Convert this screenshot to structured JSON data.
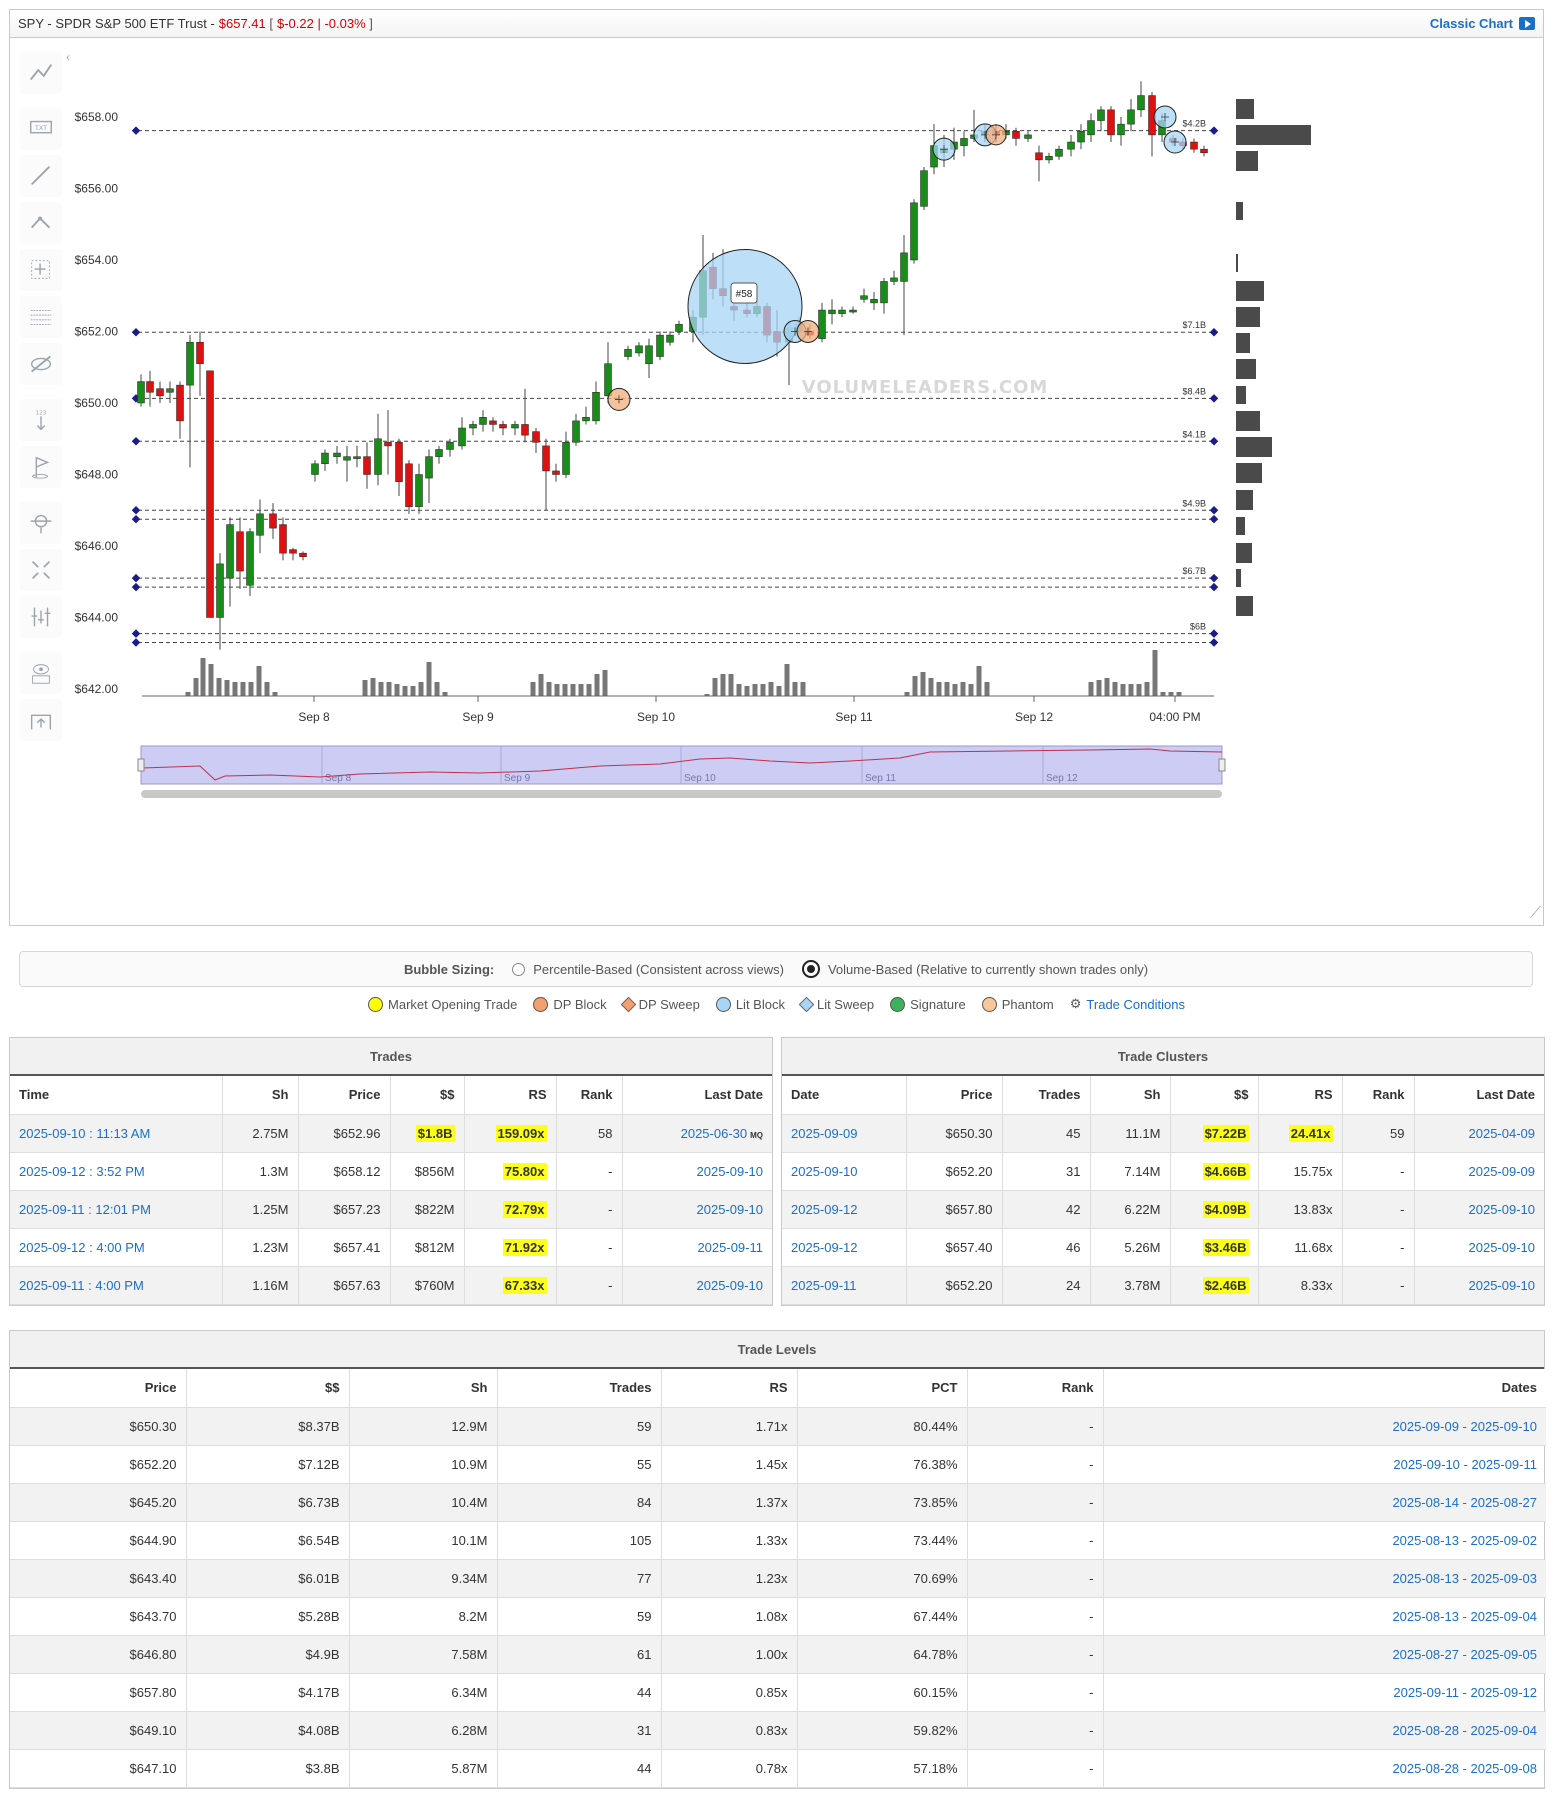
{
  "header": {
    "ticker": "SPY - SPDR S&P 500 ETF Trust -",
    "price": "$657.41",
    "change": "$-0.22 | -0.03%",
    "classic_chart": "Classic Chart"
  },
  "toolbar_icons": [
    "trend-line-icon",
    "text-icon",
    "line-icon",
    "fibonacci-icon",
    "crosshair-icon",
    "grid-lines-icon",
    "hide-icon",
    "measure-icon",
    "flag-icon",
    "zoom-icon",
    "expand-icon",
    "indicators-icon",
    "view-icon",
    "snapshot-icon"
  ],
  "chart": {
    "y_ticks": [
      "$658.00",
      "$656.00",
      "$654.00",
      "$652.00",
      "$650.00",
      "$648.00",
      "$646.00",
      "$644.00",
      "$642.00"
    ],
    "x_ticks": [
      "Sep 8",
      "Sep 9",
      "Sep 10",
      "Sep 11",
      "Sep 12",
      "04:00 PM"
    ],
    "level_labels": [
      "$4.2B",
      "$7.1B",
      "$8.4B",
      "$4.1B",
      "$4.9B",
      "$6.7B",
      "$6B"
    ],
    "bubble_label": "#58",
    "watermark": "VOLUMELEADERS.COM",
    "navigator_labels": [
      "Sep 8",
      "Sep 9",
      "Sep 10",
      "Sep 11",
      "Sep 12"
    ],
    "colors": {
      "up": "#1a8c1a",
      "down": "#dd1111",
      "lit_block": "#a8d4f5",
      "dp_block": "#f2ad7e",
      "volume": "#777777",
      "navigator": "#ccccf4"
    }
  },
  "bubble_sizing": {
    "label": "Bubble Sizing:",
    "option1": "Percentile-Based (Consistent across views)",
    "option2": "Volume-Based (Relative to currently shown trades only)",
    "selected": "option2"
  },
  "legend": [
    {
      "label": "Market Opening Trade",
      "color": "#ffff00",
      "shape": "dot"
    },
    {
      "label": "DP Block",
      "color": "#f2a070",
      "shape": "dot"
    },
    {
      "label": "DP Sweep",
      "color": "#f2a070",
      "shape": "diamond"
    },
    {
      "label": "Lit Block",
      "color": "#a8d4f5",
      "shape": "dot"
    },
    {
      "label": "Lit Sweep",
      "color": "#a8d4f5",
      "shape": "diamond"
    },
    {
      "label": "Signature",
      "color": "#3cb35a",
      "shape": "dot"
    },
    {
      "label": "Phantom",
      "color": "#f7c79a",
      "shape": "dot"
    }
  ],
  "legend_link": "Trade Conditions",
  "trades": {
    "title": "Trades",
    "columns": [
      "Time",
      "Sh",
      "Price",
      "$$",
      "RS",
      "Rank",
      "Last Date"
    ],
    "rows": [
      {
        "time": "2025-09-10 : 11:13 AM",
        "sh": "2.75M",
        "price": "$652.96",
        "dollars": "$1.8B",
        "rs": "159.09x",
        "rank": "58",
        "last": "2025-06-30",
        "mq": "MQ"
      },
      {
        "time": "2025-09-12 : 3:52 PM",
        "sh": "1.3M",
        "price": "$658.12",
        "dollars": "$856M",
        "rs": "75.80x",
        "rank": "-",
        "last": "2025-09-10",
        "mq": ""
      },
      {
        "time": "2025-09-11 : 12:01 PM",
        "sh": "1.25M",
        "price": "$657.23",
        "dollars": "$822M",
        "rs": "72.79x",
        "rank": "-",
        "last": "2025-09-10",
        "mq": ""
      },
      {
        "time": "2025-09-12 : 4:00 PM",
        "sh": "1.23M",
        "price": "$657.41",
        "dollars": "$812M",
        "rs": "71.92x",
        "rank": "-",
        "last": "2025-09-11",
        "mq": ""
      },
      {
        "time": "2025-09-11 : 4:00 PM",
        "sh": "1.16M",
        "price": "$657.63",
        "dollars": "$760M",
        "rs": "67.33x",
        "rank": "-",
        "last": "2025-09-10",
        "mq": ""
      }
    ]
  },
  "clusters": {
    "title": "Trade Clusters",
    "columns": [
      "Date",
      "Price",
      "Trades",
      "Sh",
      "$$",
      "RS",
      "Rank",
      "Last Date"
    ],
    "rows": [
      {
        "date": "2025-09-09",
        "price": "$650.30",
        "trades": "45",
        "sh": "11.1M",
        "dollars": "$7.22B",
        "rs": "24.41x",
        "rank": "59",
        "last": "2025-04-09"
      },
      {
        "date": "2025-09-10",
        "price": "$652.20",
        "trades": "31",
        "sh": "7.14M",
        "dollars": "$4.66B",
        "rs": "15.75x",
        "rank": "-",
        "last": "2025-09-09"
      },
      {
        "date": "2025-09-12",
        "price": "$657.80",
        "trades": "42",
        "sh": "6.22M",
        "dollars": "$4.09B",
        "rs": "13.83x",
        "rank": "-",
        "last": "2025-09-10"
      },
      {
        "date": "2025-09-12",
        "price": "$657.40",
        "trades": "46",
        "sh": "5.26M",
        "dollars": "$3.46B",
        "rs": "11.68x",
        "rank": "-",
        "last": "2025-09-10"
      },
      {
        "date": "2025-09-11",
        "price": "$652.20",
        "trades": "24",
        "sh": "3.78M",
        "dollars": "$2.46B",
        "rs": "8.33x",
        "rank": "-",
        "last": "2025-09-10"
      }
    ]
  },
  "levels": {
    "title": "Trade Levels",
    "columns": [
      "Price",
      "$$",
      "Sh",
      "Trades",
      "RS",
      "PCT",
      "Rank",
      "Dates"
    ],
    "rows": [
      {
        "price": "$650.30",
        "dollars": "$8.37B",
        "sh": "12.9M",
        "trades": "59",
        "rs": "1.71x",
        "pct": "80.44%",
        "rank": "-",
        "dates": "2025-09-09 - 2025-09-10"
      },
      {
        "price": "$652.20",
        "dollars": "$7.12B",
        "sh": "10.9M",
        "trades": "55",
        "rs": "1.45x",
        "pct": "76.38%",
        "rank": "-",
        "dates": "2025-09-10 - 2025-09-11"
      },
      {
        "price": "$645.20",
        "dollars": "$6.73B",
        "sh": "10.4M",
        "trades": "84",
        "rs": "1.37x",
        "pct": "73.85%",
        "rank": "-",
        "dates": "2025-08-14 - 2025-08-27"
      },
      {
        "price": "$644.90",
        "dollars": "$6.54B",
        "sh": "10.1M",
        "trades": "105",
        "rs": "1.33x",
        "pct": "73.44%",
        "rank": "-",
        "dates": "2025-08-13 - 2025-09-02"
      },
      {
        "price": "$643.40",
        "dollars": "$6.01B",
        "sh": "9.34M",
        "trades": "77",
        "rs": "1.23x",
        "pct": "70.69%",
        "rank": "-",
        "dates": "2025-08-13 - 2025-09-03"
      },
      {
        "price": "$643.70",
        "dollars": "$5.28B",
        "sh": "8.2M",
        "trades": "59",
        "rs": "1.08x",
        "pct": "67.44%",
        "rank": "-",
        "dates": "2025-08-13 - 2025-09-04"
      },
      {
        "price": "$646.80",
        "dollars": "$4.9B",
        "sh": "7.58M",
        "trades": "61",
        "rs": "1.00x",
        "pct": "64.78%",
        "rank": "-",
        "dates": "2025-08-27 - 2025-09-05"
      },
      {
        "price": "$657.80",
        "dollars": "$4.17B",
        "sh": "6.34M",
        "trades": "44",
        "rs": "0.85x",
        "pct": "60.15%",
        "rank": "-",
        "dates": "2025-09-11 - 2025-09-12"
      },
      {
        "price": "$649.10",
        "dollars": "$4.08B",
        "sh": "6.28M",
        "trades": "31",
        "rs": "0.83x",
        "pct": "59.82%",
        "rank": "-",
        "dates": "2025-08-28 - 2025-09-04"
      },
      {
        "price": "$647.10",
        "dollars": "$3.8B",
        "sh": "5.87M",
        "trades": "44",
        "rs": "0.78x",
        "pct": "57.18%",
        "rank": "-",
        "dates": "2025-08-28 - 2025-09-08"
      }
    ]
  }
}
